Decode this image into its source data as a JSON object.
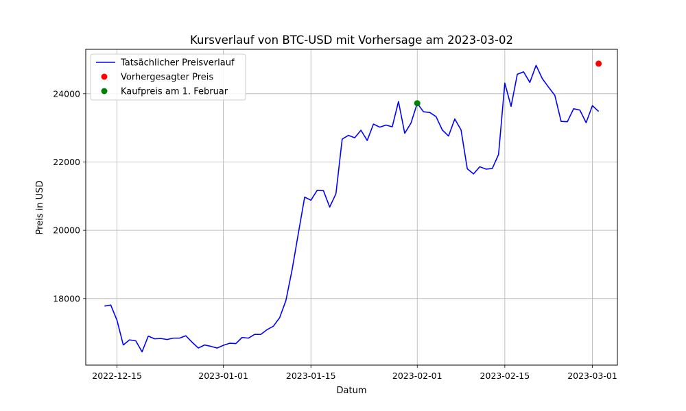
{
  "chart_data": {
    "type": "line",
    "title": "Kursverlauf von BTC-USD mit Vorhersage am 2023-03-02",
    "xlabel": "Datum",
    "ylabel": "Preis in USD",
    "x_range": [
      "2022-12-10",
      "2023-03-05"
    ],
    "ylim": [
      16050,
      25300
    ],
    "x_ticks": [
      "2022-12-15",
      "2023-01-01",
      "2023-01-15",
      "2023-02-01",
      "2023-02-15",
      "2023-03-01"
    ],
    "y_ticks": [
      18000,
      20000,
      22000,
      24000
    ],
    "grid": true,
    "legend_position": "top-left",
    "series": [
      {
        "name": "Tatsächlicher Preisverlauf",
        "kind": "line",
        "color": "#0000ff",
        "points": [
          [
            "2022-12-13",
            17780
          ],
          [
            "2022-12-14",
            17810
          ],
          [
            "2022-12-15",
            17360
          ],
          [
            "2022-12-16",
            16640
          ],
          [
            "2022-12-17",
            16790
          ],
          [
            "2022-12-18",
            16760
          ],
          [
            "2022-12-19",
            16440
          ],
          [
            "2022-12-20",
            16900
          ],
          [
            "2022-12-21",
            16820
          ],
          [
            "2022-12-22",
            16830
          ],
          [
            "2022-12-23",
            16800
          ],
          [
            "2022-12-24",
            16840
          ],
          [
            "2022-12-25",
            16840
          ],
          [
            "2022-12-26",
            16910
          ],
          [
            "2022-12-27",
            16720
          ],
          [
            "2022-12-28",
            16550
          ],
          [
            "2022-12-29",
            16640
          ],
          [
            "2022-12-30",
            16600
          ],
          [
            "2022-12-31",
            16550
          ],
          [
            "2023-01-01",
            16630
          ],
          [
            "2023-01-02",
            16690
          ],
          [
            "2023-01-03",
            16680
          ],
          [
            "2023-01-04",
            16860
          ],
          [
            "2023-01-05",
            16840
          ],
          [
            "2023-01-06",
            16950
          ],
          [
            "2023-01-07",
            16950
          ],
          [
            "2023-01-08",
            17090
          ],
          [
            "2023-01-09",
            17190
          ],
          [
            "2023-01-10",
            17440
          ],
          [
            "2023-01-11",
            17940
          ],
          [
            "2023-01-12",
            18850
          ],
          [
            "2023-01-13",
            19920
          ],
          [
            "2023-01-14",
            20970
          ],
          [
            "2023-01-15",
            20880
          ],
          [
            "2023-01-16",
            21170
          ],
          [
            "2023-01-17",
            21160
          ],
          [
            "2023-01-18",
            20680
          ],
          [
            "2023-01-19",
            21070
          ],
          [
            "2023-01-20",
            22670
          ],
          [
            "2023-01-21",
            22780
          ],
          [
            "2023-01-22",
            22710
          ],
          [
            "2023-01-23",
            22930
          ],
          [
            "2023-01-24",
            22630
          ],
          [
            "2023-01-25",
            23110
          ],
          [
            "2023-01-26",
            23020
          ],
          [
            "2023-01-27",
            23080
          ],
          [
            "2023-01-28",
            23030
          ],
          [
            "2023-01-29",
            23770
          ],
          [
            "2023-01-30",
            22840
          ],
          [
            "2023-01-31",
            23140
          ],
          [
            "2023-02-01",
            23720
          ],
          [
            "2023-02-02",
            23470
          ],
          [
            "2023-02-03",
            23450
          ],
          [
            "2023-02-04",
            23330
          ],
          [
            "2023-02-05",
            22940
          ],
          [
            "2023-02-06",
            22760
          ],
          [
            "2023-02-07",
            23260
          ],
          [
            "2023-02-08",
            22940
          ],
          [
            "2023-02-09",
            21800
          ],
          [
            "2023-02-10",
            21650
          ],
          [
            "2023-02-11",
            21860
          ],
          [
            "2023-02-12",
            21790
          ],
          [
            "2023-02-13",
            21810
          ],
          [
            "2023-02-14",
            22220
          ],
          [
            "2023-02-15",
            24310
          ],
          [
            "2023-02-16",
            23630
          ],
          [
            "2023-02-17",
            24570
          ],
          [
            "2023-02-18",
            24640
          ],
          [
            "2023-02-19",
            24330
          ],
          [
            "2023-02-20",
            24830
          ],
          [
            "2023-02-21",
            24440
          ],
          [
            "2023-02-22",
            24190
          ],
          [
            "2023-02-23",
            23950
          ],
          [
            "2023-02-24",
            23190
          ],
          [
            "2023-02-25",
            23180
          ],
          [
            "2023-02-26",
            23560
          ],
          [
            "2023-02-27",
            23520
          ],
          [
            "2023-02-28",
            23150
          ],
          [
            "2023-03-01",
            23650
          ],
          [
            "2023-03-02",
            23480
          ]
        ]
      },
      {
        "name": "Vorhergesagter Preis",
        "kind": "scatter",
        "color": "#ff0000",
        "points": [
          [
            "2023-03-02",
            24880
          ]
        ]
      },
      {
        "name": "Kaufpreis am 1. Februar",
        "kind": "scatter",
        "color": "#008000",
        "points": [
          [
            "2023-02-01",
            23720
          ]
        ]
      }
    ]
  }
}
